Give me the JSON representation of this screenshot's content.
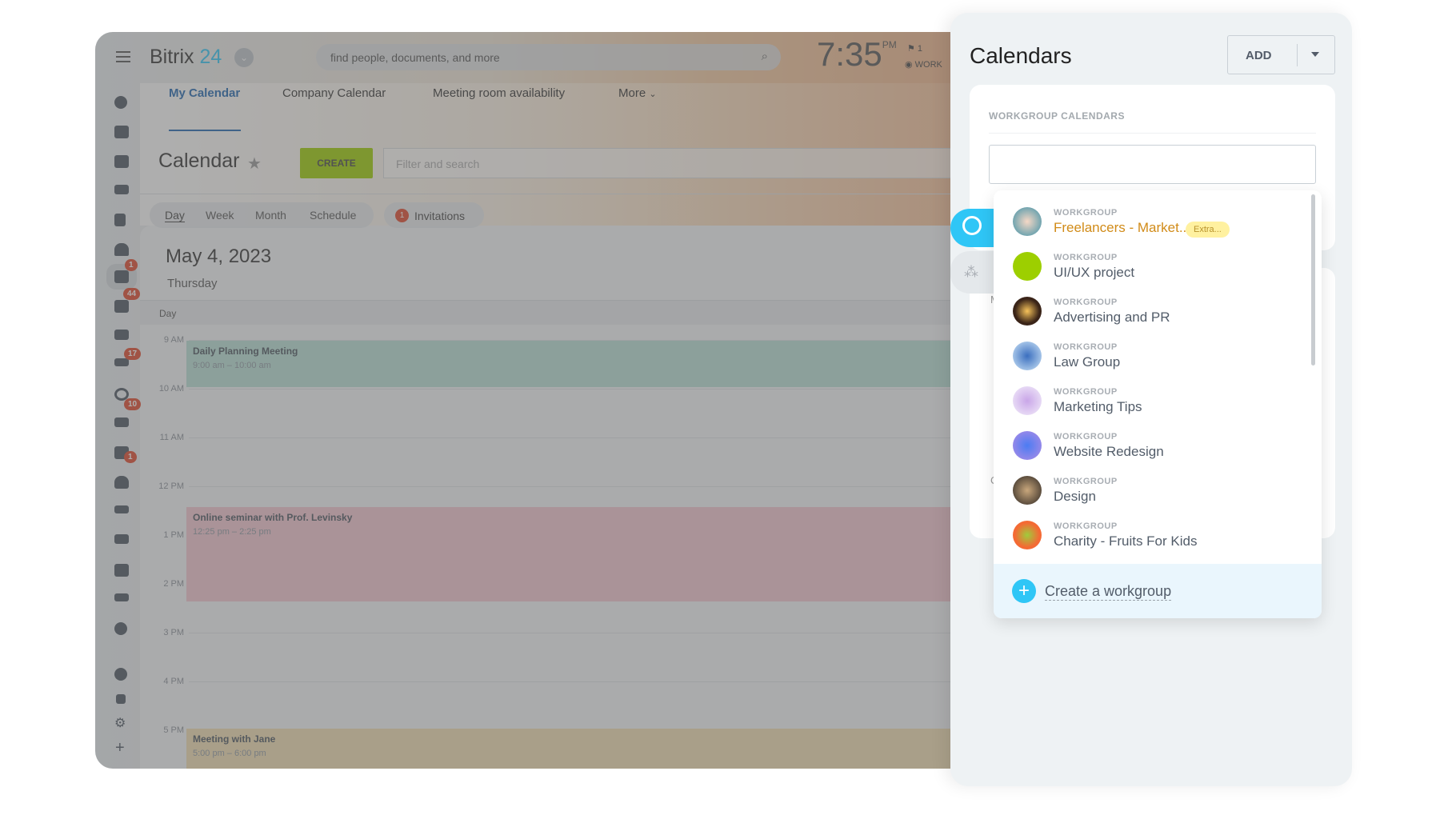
{
  "header": {
    "logo": "Bitrix",
    "logo_num": "24",
    "search_placeholder": "find people, documents, and more",
    "clock": "7:35",
    "clock_ampm": "PM",
    "flag_count": "1",
    "work_status": "WORK"
  },
  "tabs": [
    {
      "label": "My Calendar",
      "active": true
    },
    {
      "label": "Company Calendar"
    },
    {
      "label": "Meeting room availability"
    },
    {
      "label": "More"
    }
  ],
  "toolbar": {
    "title": "Calendar",
    "create_label": "CREATE",
    "filter_placeholder": "Filter and search"
  },
  "views": [
    "Day",
    "Week",
    "Month",
    "Schedule"
  ],
  "invitations": {
    "count": "1",
    "label": "Invitations"
  },
  "date": {
    "title": "May 4, 2023",
    "weekday": "Thursday"
  },
  "grid": {
    "header": "Day",
    "hours": [
      "9 AM",
      "10 AM",
      "11 AM",
      "12 PM",
      "1 PM",
      "2 PM",
      "3 PM",
      "4 PM",
      "5 PM"
    ]
  },
  "events": [
    {
      "title": "Daily Planning Meeting",
      "time": "9:00 am – 10:00 am",
      "color": "#b8e0d6"
    },
    {
      "title": "Online seminar with Prof. Levinsky",
      "time": "12:25 pm – 2:25 pm",
      "color": "#f4c6d0"
    },
    {
      "title": "Meeting with Jane",
      "time": "5:00 pm – 6:00 pm",
      "color": "#f3dfb3"
    }
  ],
  "sidebar_badges": {
    "calendar": "1",
    "tasks": "44",
    "crm": "17",
    "mail": "10",
    "robot": "1"
  },
  "panel": {
    "title": "Calendars",
    "add_label": "ADD",
    "section_title": "WORKGROUP CALENDARS",
    "search_value": "",
    "peek_letters": [
      "M",
      "C"
    ],
    "groups": [
      {
        "type": "WORKGROUP",
        "name": "Freelancers - Market...",
        "badge": "Extra...",
        "highlight": true
      },
      {
        "type": "WORKGROUP",
        "name": "UI/UX project"
      },
      {
        "type": "WORKGROUP",
        "name": "Advertising and PR"
      },
      {
        "type": "WORKGROUP",
        "name": "Law Group"
      },
      {
        "type": "WORKGROUP",
        "name": "Marketing Tips"
      },
      {
        "type": "WORKGROUP",
        "name": "Website Redesign"
      },
      {
        "type": "WORKGROUP",
        "name": "Design"
      },
      {
        "type": "WORKGROUP",
        "name": "Charity - Fruits For Kids"
      }
    ],
    "create_label": "Create a workgroup"
  },
  "colors": {
    "accent": "#2fc6f6",
    "create": "#9dcf00",
    "active_tab": "#2067b0",
    "highlight_name": "#d18b18",
    "extra_badge": "#fff1a0"
  }
}
